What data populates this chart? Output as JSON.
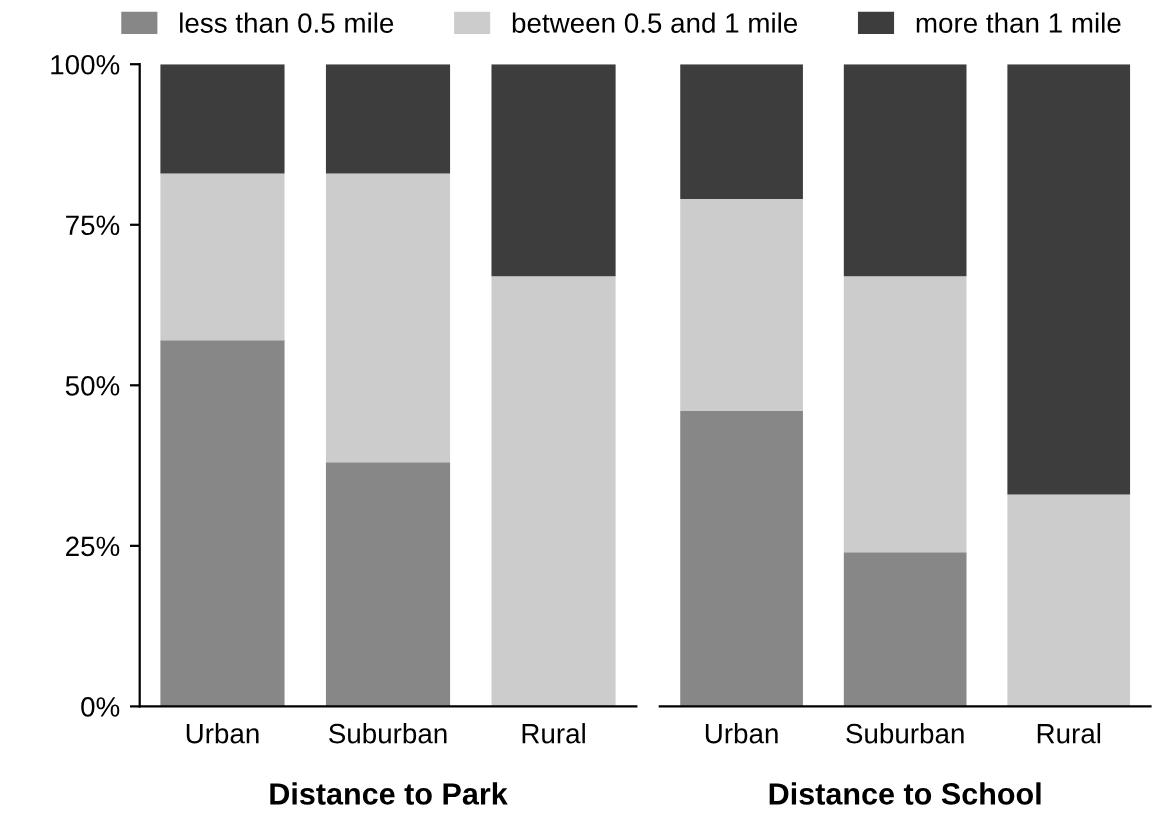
{
  "chart_data": [
    {
      "type": "bar",
      "stacked": true,
      "xlabel": "Distance to Park",
      "categories": [
        "Urban",
        "Suburban",
        "Rural"
      ],
      "series": [
        {
          "name": "less than 0.5 mile",
          "color": "#878787",
          "values": [
            57,
            38,
            0
          ]
        },
        {
          "name": "between 0.5 and 1 mile",
          "color": "#cccccc",
          "values": [
            26,
            45,
            67
          ]
        },
        {
          "name": "more than 1 mile",
          "color": "#3d3d3d",
          "values": [
            17,
            17,
            33
          ]
        }
      ],
      "ylim": [
        0,
        100
      ],
      "yticks": [
        {
          "value": 0,
          "label": "0%"
        },
        {
          "value": 25,
          "label": "25%"
        },
        {
          "value": 50,
          "label": "50%"
        },
        {
          "value": 75,
          "label": "75%"
        },
        {
          "value": 100,
          "label": "100%"
        }
      ],
      "legend": "top"
    },
    {
      "type": "bar",
      "stacked": true,
      "xlabel": "Distance to School",
      "categories": [
        "Urban",
        "Suburban",
        "Rural"
      ],
      "series": [
        {
          "color": "#878787",
          "values": [
            46,
            24,
            0
          ]
        },
        {
          "color": "#cccccc",
          "values": [
            33,
            43,
            33
          ]
        },
        {
          "color": "#3d3d3d",
          "values": [
            21,
            33,
            67
          ]
        }
      ],
      "ylim": [
        0,
        100
      ],
      "tick_labels": "x"
    }
  ]
}
